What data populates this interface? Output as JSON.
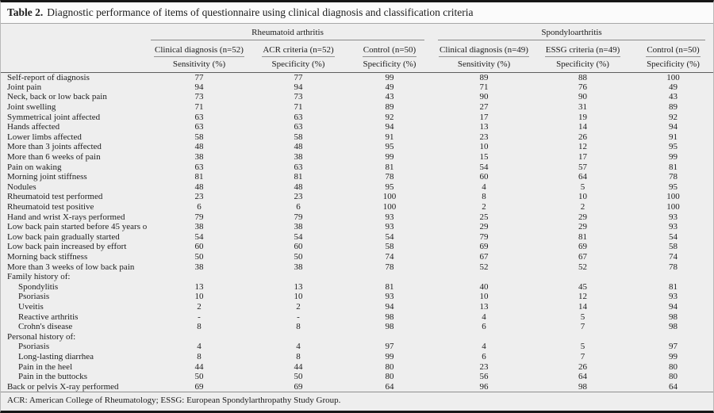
{
  "title": {
    "label": "Table 2.",
    "text": "Diagnostic performance of items of questionnaire using clinical diagnosis and classification criteria"
  },
  "table": {
    "groups": [
      {
        "name": "Rheumatoid arthritis",
        "columns": [
          {
            "header": "Clinical diagnosis (n=52)",
            "measure": "Sensitivity (%)"
          },
          {
            "header": "ACR criteria (n=52)",
            "measure": "Specificity (%)"
          },
          {
            "header": "Control (n=50)",
            "measure": "Specificity (%)"
          }
        ]
      },
      {
        "name": "Spondyloarthritis",
        "columns": [
          {
            "header": "Clinical diagnosis (n=49)",
            "measure": "Sensitivity (%)"
          },
          {
            "header": "ESSG criteria (n=49)",
            "measure": "Specificity (%)"
          },
          {
            "header": "Control (n=50)",
            "measure": "Specificity (%)"
          }
        ]
      }
    ],
    "rows": [
      {
        "label": "Self-report of diagnosis",
        "indent": false,
        "section": false,
        "values": [
          "77",
          "77",
          "99",
          "89",
          "88",
          "100"
        ]
      },
      {
        "label": "Joint pain",
        "indent": false,
        "section": false,
        "values": [
          "94",
          "94",
          "49",
          "71",
          "76",
          "49"
        ]
      },
      {
        "label": "Neck, back or low back pain",
        "indent": false,
        "section": false,
        "values": [
          "73",
          "73",
          "43",
          "90",
          "90",
          "43"
        ]
      },
      {
        "label": "Joint swelling",
        "indent": false,
        "section": false,
        "values": [
          "71",
          "71",
          "89",
          "27",
          "31",
          "89"
        ]
      },
      {
        "label": "Symmetrical joint affected",
        "indent": false,
        "section": false,
        "values": [
          "63",
          "63",
          "92",
          "17",
          "19",
          "92"
        ]
      },
      {
        "label": "Hands affected",
        "indent": false,
        "section": false,
        "values": [
          "63",
          "63",
          "94",
          "13",
          "14",
          "94"
        ]
      },
      {
        "label": "Lower limbs affected",
        "indent": false,
        "section": false,
        "values": [
          "58",
          "58",
          "91",
          "23",
          "26",
          "91"
        ]
      },
      {
        "label": "More than 3 joints affected",
        "indent": false,
        "section": false,
        "values": [
          "48",
          "48",
          "95",
          "10",
          "12",
          "95"
        ]
      },
      {
        "label": "More than 6 weeks of pain",
        "indent": false,
        "section": false,
        "values": [
          "38",
          "38",
          "99",
          "15",
          "17",
          "99"
        ]
      },
      {
        "label": "Pain on waking",
        "indent": false,
        "section": false,
        "values": [
          "63",
          "63",
          "81",
          "54",
          "57",
          "81"
        ]
      },
      {
        "label": "Morning joint stiffness",
        "indent": false,
        "section": false,
        "values": [
          "81",
          "81",
          "78",
          "60",
          "64",
          "78"
        ]
      },
      {
        "label": "Nodules",
        "indent": false,
        "section": false,
        "values": [
          "48",
          "48",
          "95",
          "4",
          "5",
          "95"
        ]
      },
      {
        "label": "Rheumatoid test performed",
        "indent": false,
        "section": false,
        "values": [
          "23",
          "23",
          "100",
          "8",
          "10",
          "100"
        ]
      },
      {
        "label": "Rheumatoid test positive",
        "indent": false,
        "section": false,
        "values": [
          "6",
          "6",
          "100",
          "2",
          "2",
          "100"
        ]
      },
      {
        "label": "Hand and wrist X-rays performed",
        "indent": false,
        "section": false,
        "values": [
          "79",
          "79",
          "93",
          "25",
          "29",
          "93"
        ]
      },
      {
        "label": "Low back pain started before 45 years of age",
        "indent": false,
        "section": false,
        "values": [
          "38",
          "38",
          "93",
          "29",
          "29",
          "93"
        ]
      },
      {
        "label": "Low back pain gradually started",
        "indent": false,
        "section": false,
        "values": [
          "54",
          "54",
          "54",
          "79",
          "81",
          "54"
        ]
      },
      {
        "label": "Low back pain increased by effort",
        "indent": false,
        "section": false,
        "values": [
          "60",
          "60",
          "58",
          "69",
          "69",
          "58"
        ]
      },
      {
        "label": "Morning back stiffness",
        "indent": false,
        "section": false,
        "values": [
          "50",
          "50",
          "74",
          "67",
          "67",
          "74"
        ]
      },
      {
        "label": "More than 3 weeks of low back pain",
        "indent": false,
        "section": false,
        "values": [
          "38",
          "38",
          "78",
          "52",
          "52",
          "78"
        ]
      },
      {
        "label": "Family history of:",
        "indent": false,
        "section": true,
        "values": [
          "",
          "",
          "",
          "",
          "",
          ""
        ]
      },
      {
        "label": "Spondylitis",
        "indent": true,
        "section": false,
        "values": [
          "13",
          "13",
          "81",
          "40",
          "45",
          "81"
        ]
      },
      {
        "label": "Psoriasis",
        "indent": true,
        "section": false,
        "values": [
          "10",
          "10",
          "93",
          "10",
          "12",
          "93"
        ]
      },
      {
        "label": "Uveitis",
        "indent": true,
        "section": false,
        "values": [
          "2",
          "2",
          "94",
          "13",
          "14",
          "94"
        ]
      },
      {
        "label": "Reactive arthritis",
        "indent": true,
        "section": false,
        "values": [
          "-",
          "-",
          "98",
          "4",
          "5",
          "98"
        ]
      },
      {
        "label": "Crohn's disease",
        "indent": true,
        "section": false,
        "values": [
          "8",
          "8",
          "98",
          "6",
          "7",
          "98"
        ]
      },
      {
        "label": "Personal history of:",
        "indent": false,
        "section": true,
        "values": [
          "",
          "",
          "",
          "",
          "",
          ""
        ]
      },
      {
        "label": "Psoriasis",
        "indent": true,
        "section": false,
        "values": [
          "4",
          "4",
          "97",
          "4",
          "5",
          "97"
        ]
      },
      {
        "label": "Long-lasting diarrhea",
        "indent": true,
        "section": false,
        "values": [
          "8",
          "8",
          "99",
          "6",
          "7",
          "99"
        ]
      },
      {
        "label": "Pain in the heel",
        "indent": true,
        "section": false,
        "values": [
          "44",
          "44",
          "80",
          "23",
          "26",
          "80"
        ]
      },
      {
        "label": "Pain in the buttocks",
        "indent": true,
        "section": false,
        "values": [
          "50",
          "50",
          "80",
          "56",
          "64",
          "80"
        ]
      },
      {
        "label": "Back or pelvis X-ray performed",
        "indent": false,
        "section": false,
        "values": [
          "69",
          "69",
          "64",
          "96",
          "98",
          "64"
        ]
      }
    ]
  },
  "footnote": "ACR: American College of Rheumatology; ESSG: European Spondylarthropathy Study Group."
}
